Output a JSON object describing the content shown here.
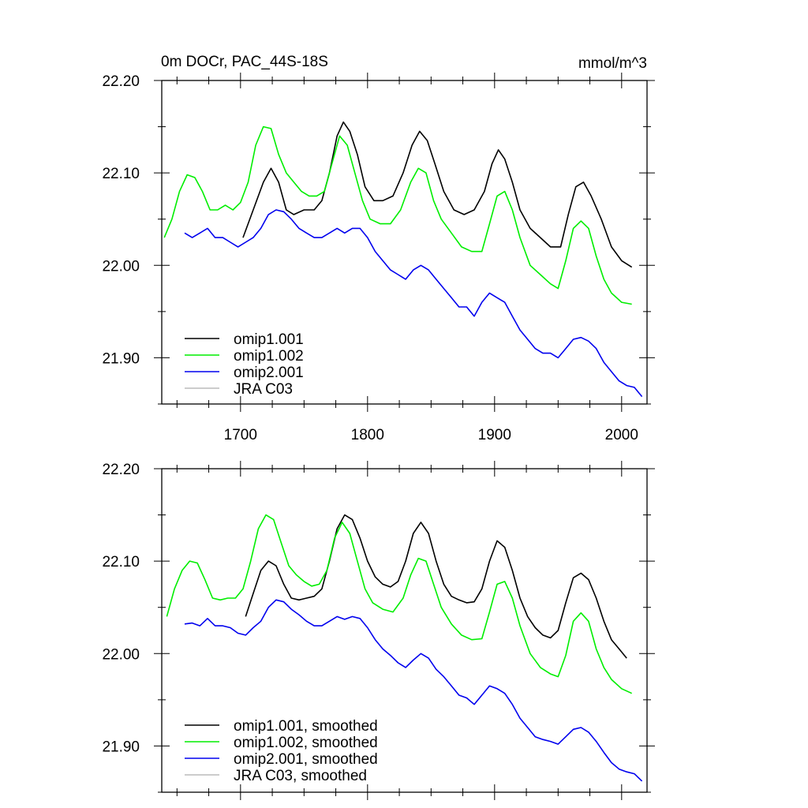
{
  "figure": {
    "title": "0m DOCr, PAC_44S-18S",
    "units": "mmol/m^3"
  },
  "colors": {
    "omip1_001": "#000000",
    "omip1_002": "#00ee00",
    "omip2_001": "#0000ee",
    "jra_c03": "#bbbbbb",
    "axis": "#000000"
  },
  "chart_data": [
    {
      "type": "line",
      "panel": "raw",
      "title": "0m DOCr, PAC_44S-18S",
      "units_label": "mmol/m^3",
      "xlabel": "",
      "ylabel": "",
      "xlim": [
        1638,
        2020
      ],
      "ylim": [
        21.85,
        22.2
      ],
      "xticks": [
        1700,
        1800,
        1900,
        2000
      ],
      "xtick_labels": [
        "1700",
        "1800",
        "1900",
        "2000"
      ],
      "yticks": [
        21.9,
        22.0,
        22.1,
        22.2
      ],
      "ytick_labels": [
        "21.90",
        "22.00",
        "22.10",
        "22.20"
      ],
      "legend_location": "bottom-left",
      "series": [
        {
          "name": "omip1.001",
          "color_key": "omip1_001",
          "x": [
            1702,
            1710,
            1718,
            1724,
            1730,
            1736,
            1742,
            1750,
            1758,
            1764,
            1770,
            1776,
            1781,
            1786,
            1792,
            1798,
            1805,
            1812,
            1820,
            1828,
            1835,
            1841,
            1847,
            1853,
            1860,
            1868,
            1876,
            1884,
            1892,
            1898,
            1903,
            1908,
            1914,
            1920,
            1928,
            1936,
            1944,
            1952,
            1958,
            1964,
            1970,
            1976,
            1984,
            1992,
            2000,
            2008
          ],
          "y": [
            22.03,
            22.06,
            22.09,
            22.105,
            22.09,
            22.06,
            22.055,
            22.06,
            22.06,
            22.07,
            22.1,
            22.14,
            22.155,
            22.145,
            22.12,
            22.085,
            22.07,
            22.07,
            22.075,
            22.1,
            22.13,
            22.145,
            22.135,
            22.11,
            22.08,
            22.06,
            22.055,
            22.06,
            22.08,
            22.11,
            22.125,
            22.115,
            22.09,
            22.06,
            22.04,
            22.03,
            22.02,
            22.02,
            22.055,
            22.085,
            22.09,
            22.075,
            22.05,
            22.02,
            22.005,
            21.998
          ]
        },
        {
          "name": "omip1.002",
          "color_key": "omip1_002",
          "x": [
            1640,
            1646,
            1652,
            1658,
            1664,
            1670,
            1676,
            1682,
            1688,
            1694,
            1700,
            1706,
            1712,
            1718,
            1724,
            1730,
            1736,
            1742,
            1748,
            1754,
            1760,
            1766,
            1772,
            1778,
            1784,
            1790,
            1796,
            1802,
            1810,
            1818,
            1826,
            1834,
            1840,
            1846,
            1852,
            1858,
            1866,
            1874,
            1882,
            1890,
            1896,
            1902,
            1908,
            1914,
            1920,
            1928,
            1936,
            1944,
            1950,
            1956,
            1962,
            1968,
            1974,
            1980,
            1986,
            1992,
            2000,
            2008
          ],
          "y": [
            22.03,
            22.05,
            22.08,
            22.098,
            22.095,
            22.08,
            22.06,
            22.06,
            22.065,
            22.06,
            22.068,
            22.09,
            22.13,
            22.15,
            22.148,
            22.12,
            22.1,
            22.09,
            22.08,
            22.075,
            22.075,
            22.08,
            22.11,
            22.14,
            22.13,
            22.1,
            22.07,
            22.05,
            22.045,
            22.045,
            22.06,
            22.09,
            22.105,
            22.1,
            22.07,
            22.05,
            22.035,
            22.02,
            22.015,
            22.015,
            22.045,
            22.075,
            22.08,
            22.06,
            22.03,
            22.0,
            21.99,
            21.98,
            21.975,
            22.005,
            22.04,
            22.048,
            22.04,
            22.01,
            21.985,
            21.97,
            21.96,
            21.958
          ]
        },
        {
          "name": "omip2.001",
          "color_key": "omip2_001",
          "x": [
            1656,
            1662,
            1668,
            1674,
            1680,
            1686,
            1692,
            1698,
            1704,
            1710,
            1716,
            1722,
            1728,
            1734,
            1740,
            1746,
            1752,
            1758,
            1764,
            1770,
            1776,
            1782,
            1788,
            1794,
            1800,
            1806,
            1812,
            1818,
            1824,
            1830,
            1836,
            1842,
            1848,
            1854,
            1860,
            1866,
            1872,
            1878,
            1884,
            1890,
            1896,
            1902,
            1908,
            1914,
            1920,
            1926,
            1932,
            1938,
            1944,
            1950,
            1956,
            1962,
            1968,
            1974,
            1980,
            1986,
            1992,
            1998,
            2004,
            2010,
            2016
          ],
          "y": [
            22.035,
            22.03,
            22.035,
            22.04,
            22.03,
            22.03,
            22.025,
            22.02,
            22.025,
            22.03,
            22.04,
            22.055,
            22.06,
            22.058,
            22.05,
            22.04,
            22.035,
            22.03,
            22.03,
            22.035,
            22.04,
            22.035,
            22.04,
            22.04,
            22.03,
            22.015,
            22.005,
            21.995,
            21.99,
            21.985,
            21.995,
            22.0,
            21.995,
            21.985,
            21.975,
            21.965,
            21.955,
            21.955,
            21.945,
            21.96,
            21.97,
            21.965,
            21.96,
            21.945,
            21.93,
            21.92,
            21.91,
            21.905,
            21.905,
            21.9,
            21.91,
            21.92,
            21.922,
            21.918,
            21.91,
            21.895,
            21.885,
            21.875,
            21.87,
            21.868,
            21.858
          ]
        },
        {
          "name": "JRA C03",
          "color_key": "jra_c03",
          "x": [],
          "y": []
        }
      ]
    },
    {
      "type": "line",
      "panel": "smoothed",
      "title": "",
      "xlabel": "",
      "ylabel": "",
      "xlim": [
        1638,
        2020
      ],
      "ylim": [
        21.85,
        22.2
      ],
      "xticks": [
        1700,
        1800,
        1900,
        2000
      ],
      "xtick_labels": [],
      "yticks": [
        21.9,
        22.0,
        22.1,
        22.2
      ],
      "ytick_labels": [
        "21.90",
        "22.00",
        "22.10",
        "22.20"
      ],
      "legend_location": "bottom-left",
      "series": [
        {
          "name": "omip1.001, smoothed",
          "color_key": "omip1_001",
          "x": [
            1704,
            1710,
            1716,
            1722,
            1728,
            1734,
            1740,
            1746,
            1752,
            1758,
            1764,
            1770,
            1776,
            1782,
            1788,
            1794,
            1800,
            1806,
            1812,
            1818,
            1824,
            1830,
            1836,
            1842,
            1848,
            1854,
            1860,
            1866,
            1872,
            1878,
            1884,
            1890,
            1896,
            1902,
            1908,
            1914,
            1920,
            1926,
            1932,
            1938,
            1944,
            1950,
            1956,
            1962,
            1968,
            1974,
            1980,
            1986,
            1992,
            1998,
            2004
          ],
          "y": [
            22.04,
            22.065,
            22.09,
            22.1,
            22.095,
            22.075,
            22.06,
            22.058,
            22.06,
            22.062,
            22.07,
            22.1,
            22.135,
            22.15,
            22.145,
            22.125,
            22.1,
            22.083,
            22.075,
            22.072,
            22.078,
            22.1,
            22.13,
            22.142,
            22.13,
            22.1,
            22.075,
            22.062,
            22.058,
            22.055,
            22.056,
            22.07,
            22.1,
            22.122,
            22.115,
            22.09,
            22.06,
            22.04,
            22.028,
            22.02,
            22.017,
            22.025,
            22.055,
            22.082,
            22.087,
            22.08,
            22.06,
            22.035,
            22.015,
            22.005,
            21.995
          ]
        },
        {
          "name": "omip1.002, smoothed",
          "color_key": "omip1_002",
          "x": [
            1642,
            1648,
            1654,
            1660,
            1666,
            1672,
            1678,
            1684,
            1690,
            1696,
            1702,
            1708,
            1714,
            1720,
            1726,
            1732,
            1738,
            1744,
            1750,
            1756,
            1762,
            1768,
            1774,
            1780,
            1786,
            1792,
            1798,
            1804,
            1812,
            1820,
            1828,
            1834,
            1840,
            1846,
            1852,
            1858,
            1866,
            1874,
            1882,
            1890,
            1896,
            1902,
            1908,
            1914,
            1920,
            1928,
            1936,
            1944,
            1950,
            1956,
            1962,
            1968,
            1974,
            1980,
            1986,
            1992,
            2000,
            2008
          ],
          "y": [
            22.04,
            22.07,
            22.09,
            22.1,
            22.098,
            22.08,
            22.06,
            22.058,
            22.06,
            22.06,
            22.07,
            22.1,
            22.135,
            22.15,
            22.145,
            22.12,
            22.095,
            22.085,
            22.078,
            22.073,
            22.075,
            22.09,
            22.125,
            22.142,
            22.13,
            22.1,
            22.07,
            22.055,
            22.048,
            22.045,
            22.06,
            22.085,
            22.103,
            22.1,
            22.075,
            22.05,
            22.032,
            22.02,
            22.015,
            22.016,
            22.045,
            22.075,
            22.078,
            22.06,
            22.03,
            22.0,
            21.985,
            21.978,
            21.975,
            21.998,
            22.035,
            22.044,
            22.035,
            22.005,
            21.985,
            21.972,
            21.962,
            21.957
          ]
        },
        {
          "name": "omip2.001, smoothed",
          "color_key": "omip2_001",
          "x": [
            1656,
            1662,
            1668,
            1674,
            1680,
            1686,
            1692,
            1698,
            1704,
            1710,
            1716,
            1722,
            1728,
            1734,
            1740,
            1746,
            1752,
            1758,
            1764,
            1770,
            1776,
            1782,
            1788,
            1794,
            1800,
            1806,
            1812,
            1818,
            1824,
            1830,
            1836,
            1842,
            1848,
            1854,
            1860,
            1866,
            1872,
            1878,
            1884,
            1890,
            1896,
            1902,
            1908,
            1914,
            1920,
            1926,
            1932,
            1938,
            1944,
            1950,
            1956,
            1962,
            1968,
            1974,
            1980,
            1986,
            1992,
            1998,
            2004,
            2010,
            2016
          ],
          "y": [
            22.032,
            22.033,
            22.03,
            22.038,
            22.03,
            22.03,
            22.028,
            22.022,
            22.02,
            22.028,
            22.035,
            22.05,
            22.058,
            22.056,
            22.048,
            22.042,
            22.035,
            22.03,
            22.03,
            22.035,
            22.04,
            22.037,
            22.04,
            22.038,
            22.028,
            22.015,
            22.005,
            21.998,
            21.99,
            21.985,
            21.993,
            22.0,
            21.995,
            21.983,
            21.975,
            21.965,
            21.955,
            21.952,
            21.945,
            21.955,
            21.965,
            21.962,
            21.957,
            21.945,
            21.93,
            21.92,
            21.91,
            21.907,
            21.905,
            21.902,
            21.91,
            21.918,
            21.92,
            21.915,
            21.905,
            21.893,
            21.882,
            21.875,
            21.872,
            21.87,
            21.862
          ]
        },
        {
          "name": "JRA C03, smoothed",
          "color_key": "jra_c03",
          "x": [],
          "y": []
        }
      ]
    }
  ]
}
